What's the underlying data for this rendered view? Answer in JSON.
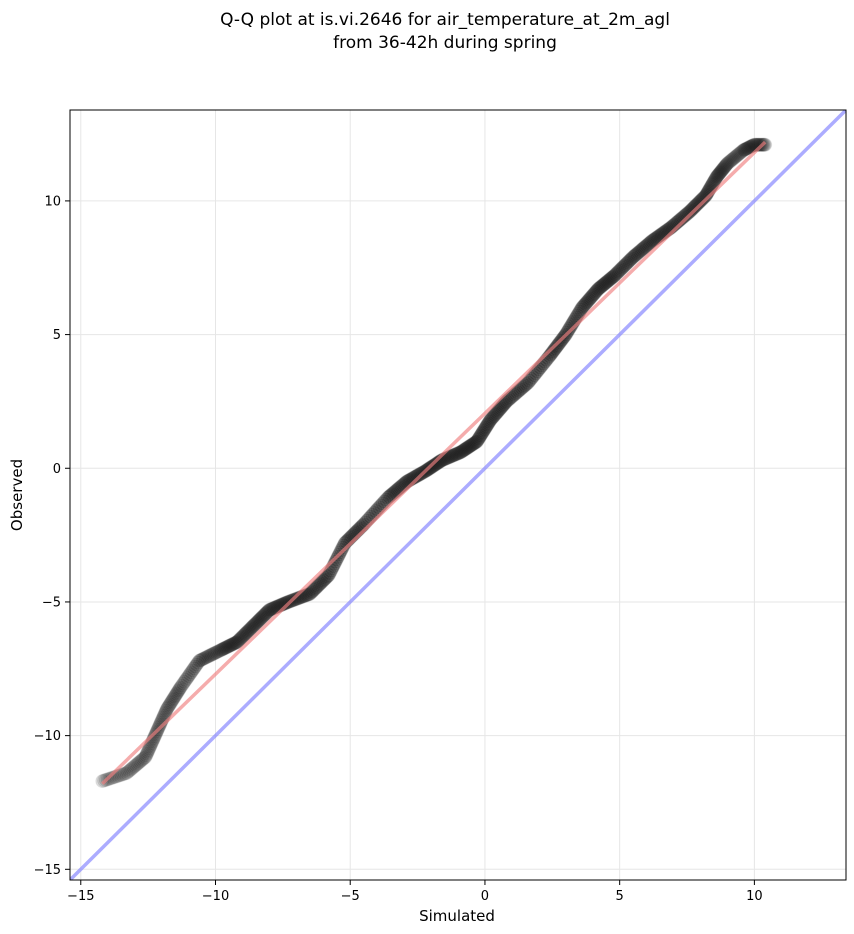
{
  "chart_data": {
    "type": "scatter",
    "title": [
      "Q-Q plot at is.vi.2646 for air_temperature_at_2m_agl",
      "from 36-42h during spring"
    ],
    "xlabel": "Simulated",
    "ylabel": "Observed",
    "xlim": [
      -15.4,
      13.4
    ],
    "ylim": [
      -15.4,
      13.4
    ],
    "xticks": [
      -15,
      -10,
      -5,
      0,
      5,
      10
    ],
    "yticks": [
      -15,
      -10,
      -5,
      0,
      5,
      10
    ],
    "grid": true,
    "colors": {
      "points": "#1a1a1a",
      "fit_line": "#f08080",
      "identity_line": "#7f7fff"
    },
    "quantile_curve": {
      "x": [
        -14.2,
        -13.3,
        -12.6,
        -12.2,
        -11.8,
        -11.3,
        -10.6,
        -9.8,
        -9.2,
        -8.6,
        -8.0,
        -7.3,
        -6.5,
        -5.8,
        -5.2,
        -4.5,
        -3.6,
        -2.9,
        -2.2,
        -1.6,
        -0.9,
        -0.3,
        0.2,
        0.8,
        1.6,
        2.4,
        3.0,
        3.6,
        4.2,
        4.8,
        5.5,
        6.2,
        6.9,
        7.6,
        8.2,
        8.6,
        9.0,
        9.6,
        10.0,
        10.4
      ],
      "y": [
        -11.7,
        -11.4,
        -10.8,
        -9.9,
        -9.0,
        -8.2,
        -7.2,
        -6.8,
        -6.5,
        -5.9,
        -5.3,
        -5.0,
        -4.7,
        -4.0,
        -2.8,
        -2.1,
        -1.1,
        -0.5,
        -0.1,
        0.3,
        0.6,
        1.0,
        1.8,
        2.5,
        3.2,
        4.2,
        5.0,
        6.0,
        6.7,
        7.2,
        7.9,
        8.5,
        9.0,
        9.6,
        10.2,
        10.9,
        11.4,
        11.9,
        12.1,
        12.1
      ],
      "weight": [
        0.3,
        0.35,
        0.45,
        0.5,
        0.55,
        0.6,
        0.7,
        0.75,
        0.85,
        0.9,
        0.95,
        1.0,
        1.0,
        1.0,
        1.0,
        1.0,
        1.0,
        1.0,
        1.0,
        1.0,
        1.0,
        1.0,
        1.0,
        1.0,
        1.0,
        1.0,
        1.0,
        1.0,
        1.0,
        1.0,
        1.0,
        1.0,
        1.0,
        0.95,
        0.85,
        0.7,
        0.55,
        0.45,
        0.35,
        0.3
      ]
    },
    "fit_line": {
      "x": [
        -14.2,
        10.4
      ],
      "y": [
        -11.8,
        12.2
      ]
    },
    "identity_line": {
      "x": [
        -15.4,
        13.4
      ],
      "y": [
        -15.4,
        13.4
      ]
    }
  }
}
